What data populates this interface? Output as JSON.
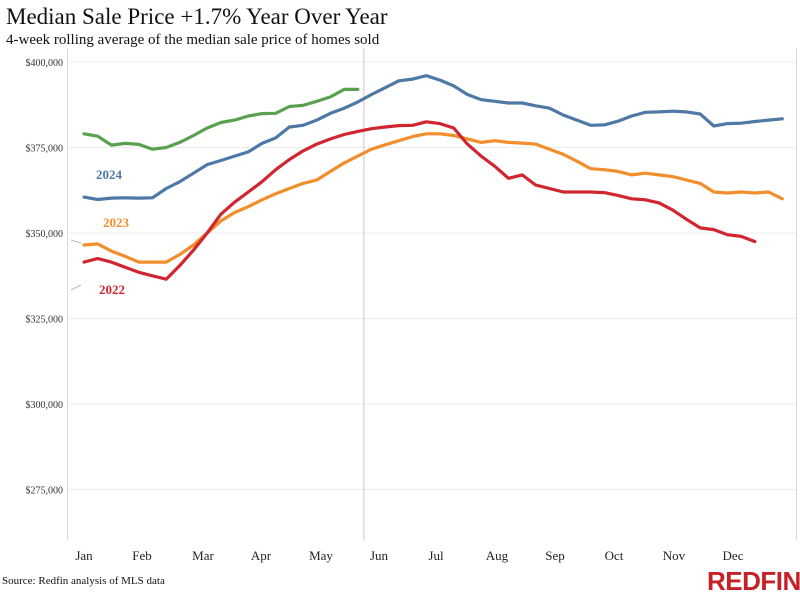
{
  "header": {
    "title": "Median Sale Price +1.7% Year Over Year",
    "subtitle": "4-week rolling average of the median sale price of homes sold"
  },
  "footer": {
    "source": "Source: Redfin analysis of MLS data",
    "logo": "REDFIN"
  },
  "colors": {
    "2024": "#4e79a7",
    "2022": "#d0262f",
    "2023": "#f28e2b",
    "highlight": "#59a14f"
  },
  "chart_data": {
    "type": "line",
    "title": "Median Sale Price +1.7% Year Over Year",
    "subtitle": "4-week rolling average of the median sale price of homes sold",
    "xlabel": "",
    "ylabel": "",
    "x_axis_ticks": [
      "Jan",
      "Feb",
      "Mar",
      "Apr",
      "May",
      "Jun",
      "Jul",
      "Aug",
      "Sep",
      "Oct",
      "Nov",
      "Dec"
    ],
    "y_axis_ticks": [
      "$275,000",
      "$300,000",
      "$325,000",
      "$350,000",
      "$375,000",
      "$400,000"
    ],
    "ylim": [
      265000,
      402000
    ],
    "grid": "horizontal",
    "legend": "inline-labels",
    "current_week_marker": 21,
    "series": [
      {
        "name": "2024",
        "x": [
          1,
          2,
          3,
          4,
          5,
          6,
          7,
          8,
          9,
          10,
          11,
          12,
          13,
          14,
          15,
          16,
          17,
          18,
          19,
          20,
          21,
          22,
          23,
          24,
          25,
          26,
          27,
          28,
          29,
          30,
          31,
          32,
          33,
          34,
          35,
          36,
          37,
          38,
          39,
          40,
          41,
          42,
          43,
          44,
          45,
          46,
          47,
          48,
          49,
          50,
          51,
          52
        ],
        "values": [
          360500,
          359800,
          360200,
          360300,
          360200,
          360300,
          363000,
          365000,
          367500,
          370000,
          371200,
          372500,
          373700,
          376200,
          377800,
          381000,
          381500,
          383000,
          385000,
          386500,
          388300,
          390500,
          392500,
          394500,
          395000,
          396000,
          394700,
          393000,
          390500,
          389000,
          388500,
          388000,
          388000,
          387200,
          386500,
          384500,
          383000,
          381500,
          381600,
          382700,
          384200,
          385300,
          385400,
          385600,
          385400,
          384800,
          381300,
          382000,
          382100,
          382600,
          383000,
          383400
        ],
        "segments": [
          {
            "name": "2024 current",
            "from_index": 0,
            "to_index": 20,
            "color": "#59a14f",
            "values": [
              379000,
              378300,
              375700,
              376200,
              375900,
              374500,
              375000,
              376500,
              378500,
              380700,
              382300,
              383000,
              384200,
              384900,
              385000,
              387000,
              387300,
              388500,
              389800,
              392000,
              392000
            ]
          }
        ]
      },
      {
        "name": "2023",
        "x": [
          1,
          2,
          3,
          4,
          5,
          6,
          7,
          8,
          9,
          10,
          11,
          12,
          13,
          14,
          15,
          16,
          17,
          18,
          19,
          20,
          21,
          22,
          23,
          24,
          25,
          26,
          27,
          28,
          29,
          30,
          31,
          32,
          33,
          34,
          35,
          36,
          37,
          38,
          39,
          40,
          41,
          42,
          43,
          44,
          45,
          46,
          47,
          48,
          49,
          50,
          51,
          52
        ],
        "values": [
          346500,
          346800,
          344700,
          343200,
          341500,
          341500,
          341500,
          343700,
          346500,
          350000,
          353500,
          356000,
          357700,
          359700,
          361500,
          363000,
          364500,
          365500,
          368000,
          370500,
          372500,
          374500,
          375800,
          377000,
          378200,
          379000,
          379000,
          378500,
          377500,
          376500,
          377000,
          376500,
          376300,
          376000,
          374500,
          373000,
          371000,
          368800,
          368500,
          368000,
          367000,
          367500,
          367000,
          366500,
          365500,
          364500,
          362000,
          361700,
          362000,
          361700,
          362000,
          360000
        ]
      },
      {
        "name": "2022",
        "x": [
          1,
          2,
          3,
          4,
          5,
          6,
          7,
          8,
          9,
          10,
          11,
          12,
          13,
          14,
          15,
          16,
          17,
          18,
          19,
          20,
          21,
          22,
          23,
          24,
          25,
          26,
          27,
          28,
          29,
          30,
          31,
          32,
          33,
          34,
          35,
          36,
          37,
          38,
          39,
          40,
          41,
          42,
          43,
          44,
          45,
          46,
          47,
          48,
          49,
          50
        ],
        "values": [
          341500,
          342500,
          341500,
          340000,
          338500,
          337500,
          336500,
          340500,
          345000,
          350000,
          355500,
          359000,
          362000,
          365000,
          368500,
          371500,
          374000,
          376000,
          377500,
          378800,
          379700,
          380500,
          381000,
          381400,
          381500,
          382500,
          382000,
          380700,
          376000,
          372500,
          369500,
          366000,
          367000,
          364000,
          363000,
          362000,
          362000,
          362000,
          361800,
          361000,
          360000,
          359700,
          358800,
          356700,
          354000,
          351500,
          351000,
          349500,
          349000,
          347500
        ]
      }
    ],
    "annotations": [
      {
        "text": "2024",
        "color": "#4e79a7"
      },
      {
        "text": "2023",
        "color": "#f28e2b"
      },
      {
        "text": "2022",
        "color": "#d0262f"
      }
    ]
  }
}
